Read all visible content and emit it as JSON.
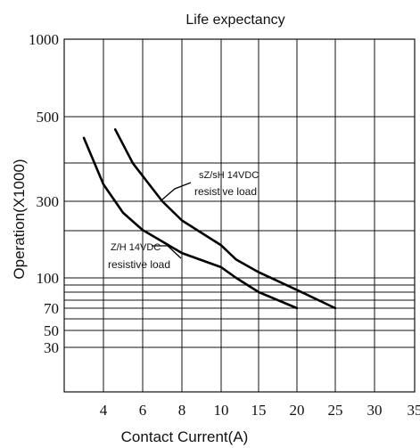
{
  "chart_data": {
    "type": "line",
    "title": "Life expectancy",
    "xlabel": "Contact Current(A)",
    "ylabel": "Operation(X1000)",
    "x_ticks": [
      "4",
      "6",
      "8",
      "10",
      "15",
      "20",
      "25",
      "30",
      "35"
    ],
    "y_ticks": [
      "1000",
      "500",
      "300",
      "100",
      "70",
      "50",
      "30"
    ],
    "grid": true,
    "series": [
      {
        "name": "sZ/sH 14VDC resistive load",
        "points": [
          {
            "x": 4.6,
            "y": 470
          },
          {
            "x": 5.5,
            "y": 390
          },
          {
            "x": 7,
            "y": 300
          },
          {
            "x": 8,
            "y": 250
          },
          {
            "x": 10,
            "y": 185
          },
          {
            "x": 12,
            "y": 148
          },
          {
            "x": 15,
            "y": 115
          },
          {
            "x": 20,
            "y": 88
          },
          {
            "x": 25,
            "y": 70
          }
        ]
      },
      {
        "name": "Z/H 14VDC resistive load",
        "points": [
          {
            "x": 3,
            "y": 450
          },
          {
            "x": 4,
            "y": 340
          },
          {
            "x": 5,
            "y": 270
          },
          {
            "x": 6,
            "y": 225
          },
          {
            "x": 8,
            "y": 165
          },
          {
            "x": 10,
            "y": 128
          },
          {
            "x": 12,
            "y": 100
          },
          {
            "x": 15,
            "y": 86
          },
          {
            "x": 20,
            "y": 70
          }
        ]
      }
    ],
    "annotations": [
      {
        "line1": "sZ/sH 14VDC",
        "line2": "resistive load"
      },
      {
        "line1": "Z/H 14VDC",
        "line2": "resistive load"
      }
    ]
  }
}
